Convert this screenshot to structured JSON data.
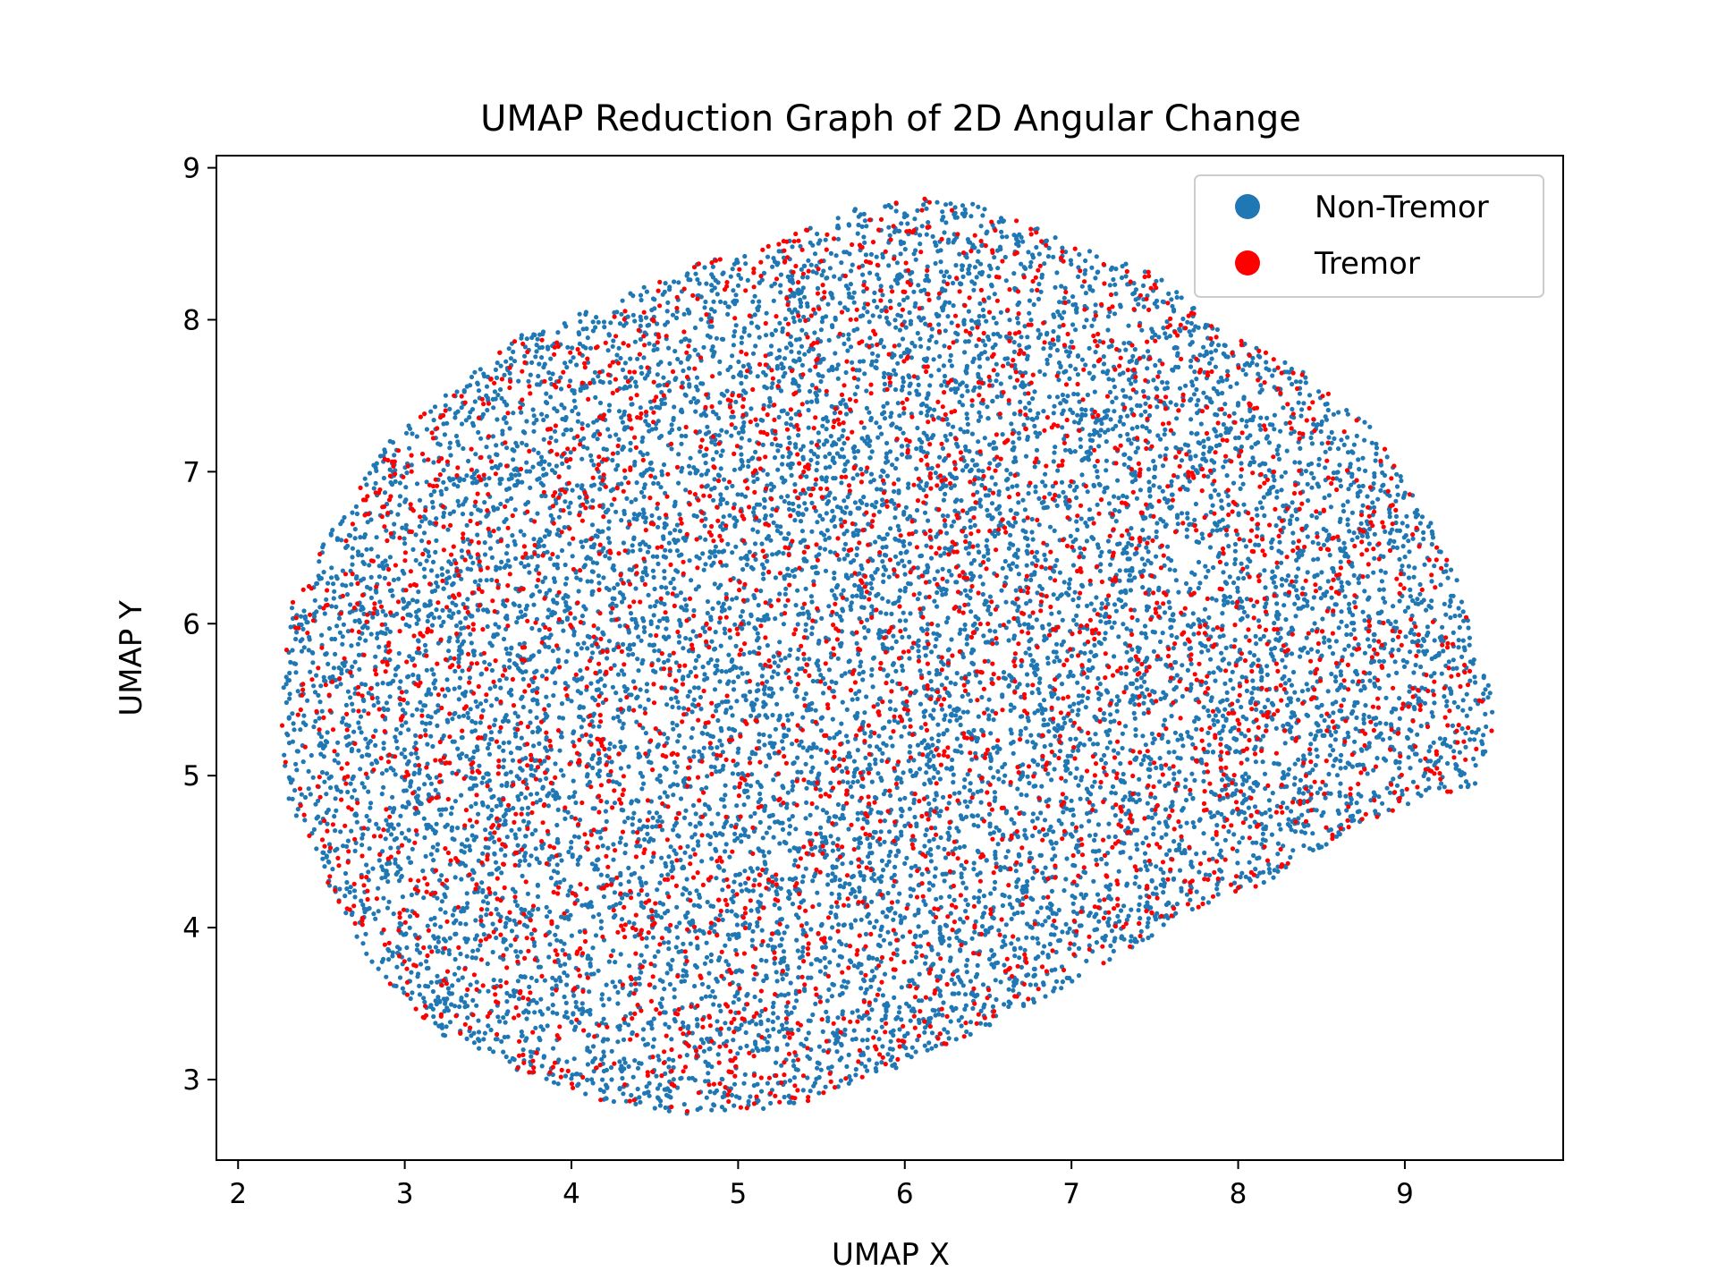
{
  "chart_data": {
    "type": "scatter",
    "title": "UMAP Reduction Graph of 2D Angular Change",
    "xlabel": "UMAP X",
    "ylabel": "UMAP Y",
    "xlim": [
      1.87,
      9.95
    ],
    "ylim": [
      2.47,
      9.08
    ],
    "xticks": [
      2,
      3,
      4,
      5,
      6,
      7,
      8,
      9
    ],
    "yticks": [
      3,
      4,
      5,
      6,
      7,
      8,
      9
    ],
    "grid": false,
    "legend_position": "top-right",
    "point_cloud": {
      "description_free": true,
      "center": [
        5.85,
        5.75
      ],
      "boundary": [
        [
          2.25,
          5.25
        ],
        [
          2.3,
          6.1
        ],
        [
          2.6,
          6.7
        ],
        [
          2.9,
          7.2
        ],
        [
          3.3,
          7.55
        ],
        [
          3.7,
          7.9
        ],
        [
          4.2,
          8.1
        ],
        [
          4.7,
          8.35
        ],
        [
          5.2,
          8.5
        ],
        [
          5.75,
          8.75
        ],
        [
          6.1,
          8.8
        ],
        [
          6.5,
          8.75
        ],
        [
          7.0,
          8.5
        ],
        [
          7.5,
          8.3
        ],
        [
          7.9,
          7.95
        ],
        [
          8.35,
          7.7
        ],
        [
          8.8,
          7.3
        ],
        [
          9.1,
          6.8
        ],
        [
          9.35,
          6.2
        ],
        [
          9.55,
          5.4
        ],
        [
          9.45,
          4.95
        ],
        [
          9.0,
          4.8
        ],
        [
          8.6,
          4.6
        ],
        [
          8.2,
          4.3
        ],
        [
          7.7,
          4.1
        ],
        [
          7.2,
          3.75
        ],
        [
          6.5,
          3.35
        ],
        [
          5.9,
          3.05
        ],
        [
          5.4,
          2.85
        ],
        [
          4.8,
          2.75
        ],
        [
          4.2,
          2.85
        ],
        [
          3.7,
          3.05
        ],
        [
          3.2,
          3.3
        ],
        [
          2.8,
          3.75
        ],
        [
          2.5,
          4.35
        ],
        [
          2.3,
          4.85
        ]
      ]
    },
    "series": [
      {
        "name": "Non-Tremor",
        "color": "#1f77b4",
        "approx_count": 11000
      },
      {
        "name": "Tremor",
        "color": "#ff0000",
        "approx_count": 3400
      }
    ]
  }
}
